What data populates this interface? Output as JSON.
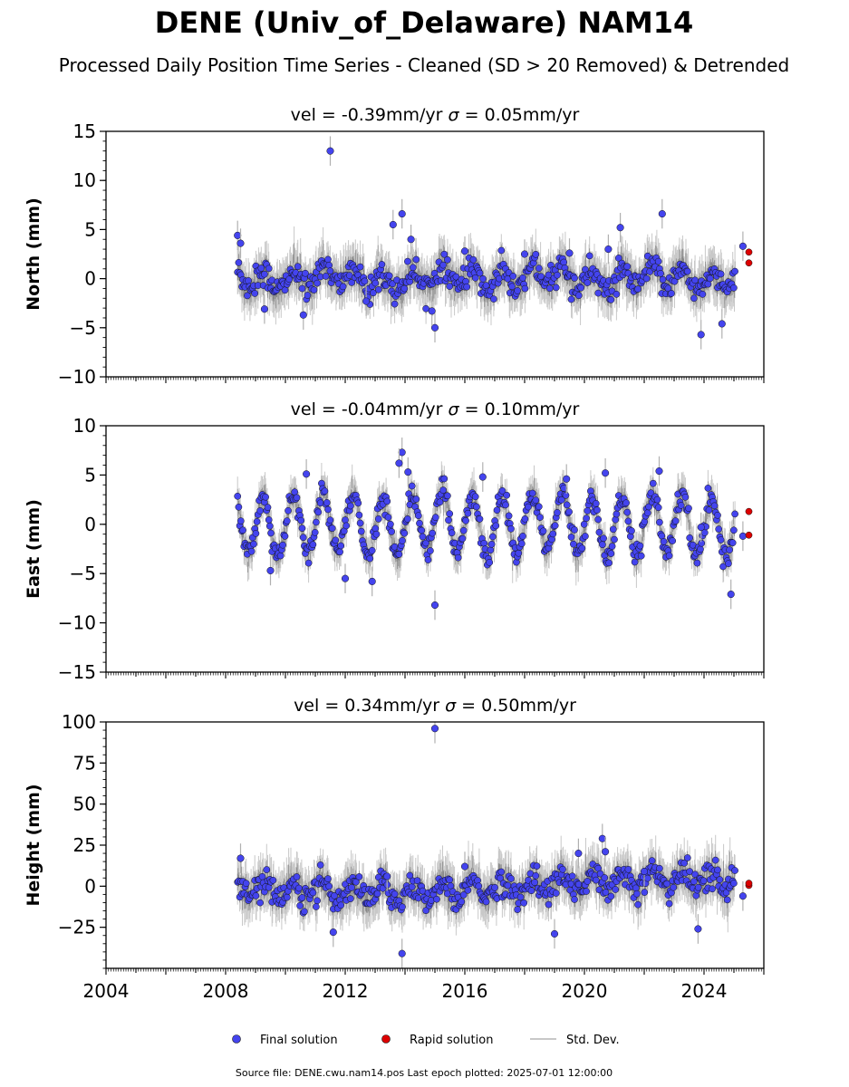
{
  "figure": {
    "title": "DENE (Univ_of_Delaware) NAM14",
    "subtitle": "Processed Daily Position Time Series - Cleaned (SD > 20 Removed) & Detrended",
    "source_line": "Source file: DENE.cwu.nam14.pos  Last epoch plotted: 2025-07-01 12:00:00"
  },
  "legend": {
    "final": "Final solution",
    "rapid": "Rapid solution",
    "std": "Std. Dev."
  },
  "colors": {
    "final": "#4444ee",
    "rapid": "#dd0000",
    "std": "#b0b0b0",
    "edge": "#111111"
  },
  "chart_data": [
    {
      "type": "scatter",
      "panel": "north",
      "title_vel": "vel = -0.39mm/yr",
      "title_sigma": "= 0.05mm/yr",
      "ylabel": "North (mm)",
      "xlim": [
        2004.0,
        2026.0
      ],
      "ylim": [
        -10,
        15
      ],
      "yticks": [
        -10,
        -5,
        0,
        5,
        10,
        15
      ],
      "ytick_labels": [
        "−10",
        "−5",
        "0",
        "5",
        "10",
        "15"
      ],
      "amplitude": 1.0,
      "noise": 1.0,
      "series_final": [
        [
          2008.4,
          4.4
        ],
        [
          2008.5,
          3.6
        ],
        [
          2011.5,
          13.0
        ],
        [
          2013.9,
          6.6
        ],
        [
          2013.6,
          5.5
        ],
        [
          2014.2,
          4.0
        ],
        [
          2015.0,
          -5.0
        ],
        [
          2014.9,
          -3.3
        ],
        [
          2010.6,
          -3.7
        ],
        [
          2009.3,
          -3.1
        ],
        [
          2022.6,
          6.6
        ],
        [
          2021.2,
          5.2
        ],
        [
          2024.6,
          -4.6
        ],
        [
          2023.9,
          -5.7
        ],
        [
          2025.3,
          3.3
        ],
        [
          2016.0,
          2.8
        ],
        [
          2018.0,
          2.5
        ],
        [
          2019.5,
          2.6
        ],
        [
          2020.8,
          3.0
        ],
        [
          2012.7,
          -2.3
        ]
      ],
      "series_rapid": [
        [
          2025.5,
          2.7
        ],
        [
          2025.5,
          1.6
        ]
      ]
    },
    {
      "type": "scatter",
      "panel": "east",
      "title_vel": "vel = -0.04mm/yr",
      "title_sigma": "= 0.10mm/yr",
      "ylabel": "East (mm)",
      "xlim": [
        2004.0,
        2026.0
      ],
      "ylim": [
        -15,
        10
      ],
      "yticks": [
        -15,
        -10,
        -5,
        0,
        5,
        10
      ],
      "ytick_labels": [
        "−15",
        "−10",
        "−5",
        "0",
        "5",
        "10"
      ],
      "amplitude": 3.0,
      "noise": 0.8,
      "series_final": [
        [
          2013.9,
          7.3
        ],
        [
          2013.8,
          6.2
        ],
        [
          2014.1,
          5.3
        ],
        [
          2015.0,
          -8.2
        ],
        [
          2012.9,
          -5.8
        ],
        [
          2012.0,
          -5.5
        ],
        [
          2024.9,
          -7.1
        ],
        [
          2022.5,
          5.4
        ],
        [
          2020.7,
          5.2
        ],
        [
          2010.7,
          5.1
        ],
        [
          2025.3,
          -1.2
        ],
        [
          2016.6,
          4.8
        ],
        [
          2019.4,
          4.6
        ],
        [
          2023.9,
          -0.3
        ],
        [
          2009.5,
          -4.7
        ]
      ],
      "series_rapid": [
        [
          2025.5,
          1.3
        ],
        [
          2025.5,
          -1.1
        ]
      ]
    },
    {
      "type": "scatter",
      "panel": "height",
      "title_vel": "vel = 0.34mm/yr",
      "title_sigma": "= 0.50mm/yr",
      "ylabel": "Height (mm)",
      "xlim": [
        2004.0,
        2026.0
      ],
      "ylim": [
        -50,
        100
      ],
      "yticks": [
        -25,
        0,
        25,
        50,
        75,
        100
      ],
      "ytick_labels": [
        "−25",
        "0",
        "25",
        "50",
        "75",
        "100"
      ],
      "xticks": [
        2004,
        2008,
        2012,
        2016,
        2020,
        2024
      ],
      "xtick_labels": [
        "2004",
        "2008",
        "2012",
        "2016",
        "2020",
        "2024"
      ],
      "amplitude": 5.0,
      "noise": 6.0,
      "series_final": [
        [
          2015.0,
          96.0
        ],
        [
          2013.9,
          -41.0
        ],
        [
          2020.6,
          29.0
        ],
        [
          2020.7,
          21.0
        ],
        [
          2019.8,
          20.0
        ],
        [
          2008.5,
          17.0
        ],
        [
          2013.4,
          6.0
        ],
        [
          2023.8,
          -26.0
        ],
        [
          2019.0,
          -29.0
        ],
        [
          2025.3,
          -6.0
        ],
        [
          2011.6,
          -28.0
        ],
        [
          2016.0,
          12.0
        ],
        [
          2022.0,
          9.0
        ]
      ],
      "series_rapid": [
        [
          2025.5,
          0.5
        ],
        [
          2025.5,
          1.8
        ]
      ]
    }
  ]
}
